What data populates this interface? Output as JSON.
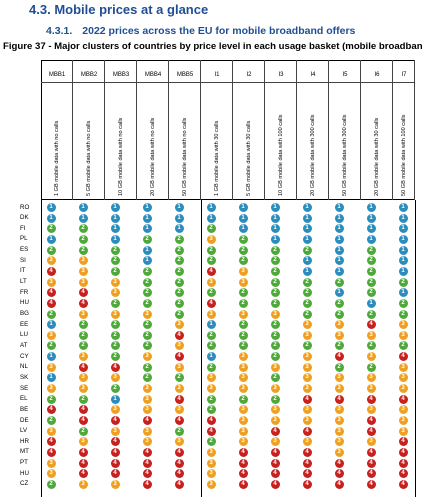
{
  "heading": {
    "number": "4.3.",
    "title": "Mobile prices at a glance"
  },
  "subheading": {
    "number": "4.3.1.",
    "title": "2022 prices across the EU for mobile broadband offers"
  },
  "caption": "Figure 37 - Major clusters of countries by price level in each usage basket (mobile broadban",
  "colors": {
    "1": "#2b8cbe",
    "2": "#4daa3a",
    "3": "#f0a020",
    "4": "#c8201f",
    "heading": "#1f4e96"
  },
  "columns": [
    {
      "code": "MBB1",
      "desc": "1 GB mobile data with no calls"
    },
    {
      "code": "MBB2",
      "desc": "5 GB mobile data with no calls"
    },
    {
      "code": "MBB3",
      "desc": "10 GB mobile data with no calls"
    },
    {
      "code": "MBB4",
      "desc": "20 GB mobile data with no calls"
    },
    {
      "code": "MBB5",
      "desc": "50 GB mobile data with no calls"
    },
    {
      "code": "I1",
      "desc": "1 GB mobile data with 30 calls"
    },
    {
      "code": "I2",
      "desc": "5 GB mobile data with 30 calls"
    },
    {
      "code": "I3",
      "desc": "10 GB mobile data with 100 calls"
    },
    {
      "code": "I4",
      "desc": "20 GB mobile data with 300 calls"
    },
    {
      "code": "I5",
      "desc": "50 GB mobile data with 300 calls"
    },
    {
      "code": "I6",
      "desc": "20 GB mobile data with 30 calls"
    },
    {
      "code": "I7",
      "desc": "50 GB mobile data with 100 calls"
    }
  ],
  "rows": [
    {
      "country": "RO",
      "values": [
        1,
        1,
        1,
        1,
        1,
        1,
        1,
        1,
        1,
        1,
        1,
        1
      ]
    },
    {
      "country": "DK",
      "values": [
        1,
        1,
        1,
        1,
        1,
        1,
        1,
        1,
        1,
        1,
        1,
        1
      ]
    },
    {
      "country": "FI",
      "values": [
        2,
        2,
        1,
        1,
        1,
        2,
        1,
        1,
        1,
        1,
        1,
        1
      ]
    },
    {
      "country": "PL",
      "values": [
        1,
        2,
        1,
        2,
        2,
        3,
        2,
        1,
        1,
        1,
        1,
        1
      ]
    },
    {
      "country": "ES",
      "values": [
        2,
        2,
        2,
        1,
        2,
        2,
        2,
        2,
        2,
        1,
        2,
        1
      ]
    },
    {
      "country": "SI",
      "values": [
        3,
        3,
        2,
        1,
        2,
        2,
        2,
        2,
        1,
        1,
        2,
        1
      ]
    },
    {
      "country": "IT",
      "values": [
        4,
        3,
        2,
        2,
        2,
        4,
        3,
        2,
        1,
        1,
        2,
        1
      ]
    },
    {
      "country": "LT",
      "values": [
        3,
        3,
        3,
        2,
        2,
        3,
        3,
        2,
        2,
        2,
        2,
        2
      ]
    },
    {
      "country": "FR",
      "values": [
        4,
        4,
        3,
        2,
        2,
        2,
        2,
        2,
        2,
        1,
        2,
        1
      ]
    },
    {
      "country": "HU",
      "values": [
        4,
        4,
        2,
        2,
        2,
        4,
        2,
        2,
        2,
        2,
        1,
        2
      ]
    },
    {
      "country": "BG",
      "values": [
        2,
        3,
        3,
        3,
        2,
        3,
        3,
        3,
        2,
        2,
        2,
        2
      ]
    },
    {
      "country": "EE",
      "values": [
        1,
        2,
        2,
        2,
        3,
        1,
        2,
        2,
        3,
        3,
        4,
        3
      ]
    },
    {
      "country": "LU",
      "values": [
        3,
        2,
        2,
        2,
        4,
        2,
        2,
        2,
        3,
        3,
        3,
        3
      ]
    },
    {
      "country": "AT",
      "values": [
        2,
        2,
        2,
        2,
        3,
        2,
        2,
        2,
        2,
        2,
        2,
        2
      ]
    },
    {
      "country": "CY",
      "values": [
        1,
        3,
        2,
        3,
        4,
        1,
        3,
        2,
        3,
        4,
        3,
        4
      ]
    },
    {
      "country": "NL",
      "values": [
        3,
        4,
        4,
        2,
        3,
        2,
        3,
        3,
        3,
        2,
        2,
        3
      ]
    },
    {
      "country": "SK",
      "values": [
        1,
        3,
        3,
        2,
        2,
        3,
        3,
        2,
        3,
        3,
        3,
        3
      ]
    },
    {
      "country": "SE",
      "values": [
        3,
        3,
        2,
        3,
        3,
        3,
        3,
        3,
        3,
        3,
        3,
        3
      ]
    },
    {
      "country": "EL",
      "values": [
        2,
        2,
        1,
        3,
        4,
        2,
        2,
        2,
        4,
        4,
        4,
        4
      ]
    },
    {
      "country": "BE",
      "values": [
        4,
        4,
        3,
        3,
        3,
        2,
        3,
        3,
        3,
        3,
        3,
        3
      ]
    },
    {
      "country": "DE",
      "values": [
        2,
        4,
        4,
        4,
        4,
        4,
        3,
        3,
        3,
        3,
        4,
        3
      ]
    },
    {
      "country": "LV",
      "values": [
        3,
        2,
        3,
        3,
        2,
        4,
        3,
        4,
        4,
        3,
        4,
        3
      ]
    },
    {
      "country": "HR",
      "values": [
        4,
        3,
        4,
        3,
        3,
        2,
        3,
        3,
        3,
        3,
        3,
        4
      ]
    },
    {
      "country": "MT",
      "values": [
        4,
        4,
        4,
        4,
        4,
        3,
        4,
        4,
        4,
        3,
        4,
        4
      ]
    },
    {
      "country": "PT",
      "values": [
        3,
        4,
        4,
        4,
        4,
        3,
        4,
        4,
        4,
        4,
        4,
        4
      ]
    },
    {
      "country": "HU",
      "values": [
        3,
        4,
        4,
        4,
        4,
        3,
        4,
        4,
        4,
        4,
        4,
        4
      ]
    },
    {
      "country": "CZ",
      "values": [
        2,
        3,
        3,
        4,
        4,
        3,
        4,
        4,
        4,
        4,
        4,
        4
      ]
    }
  ]
}
